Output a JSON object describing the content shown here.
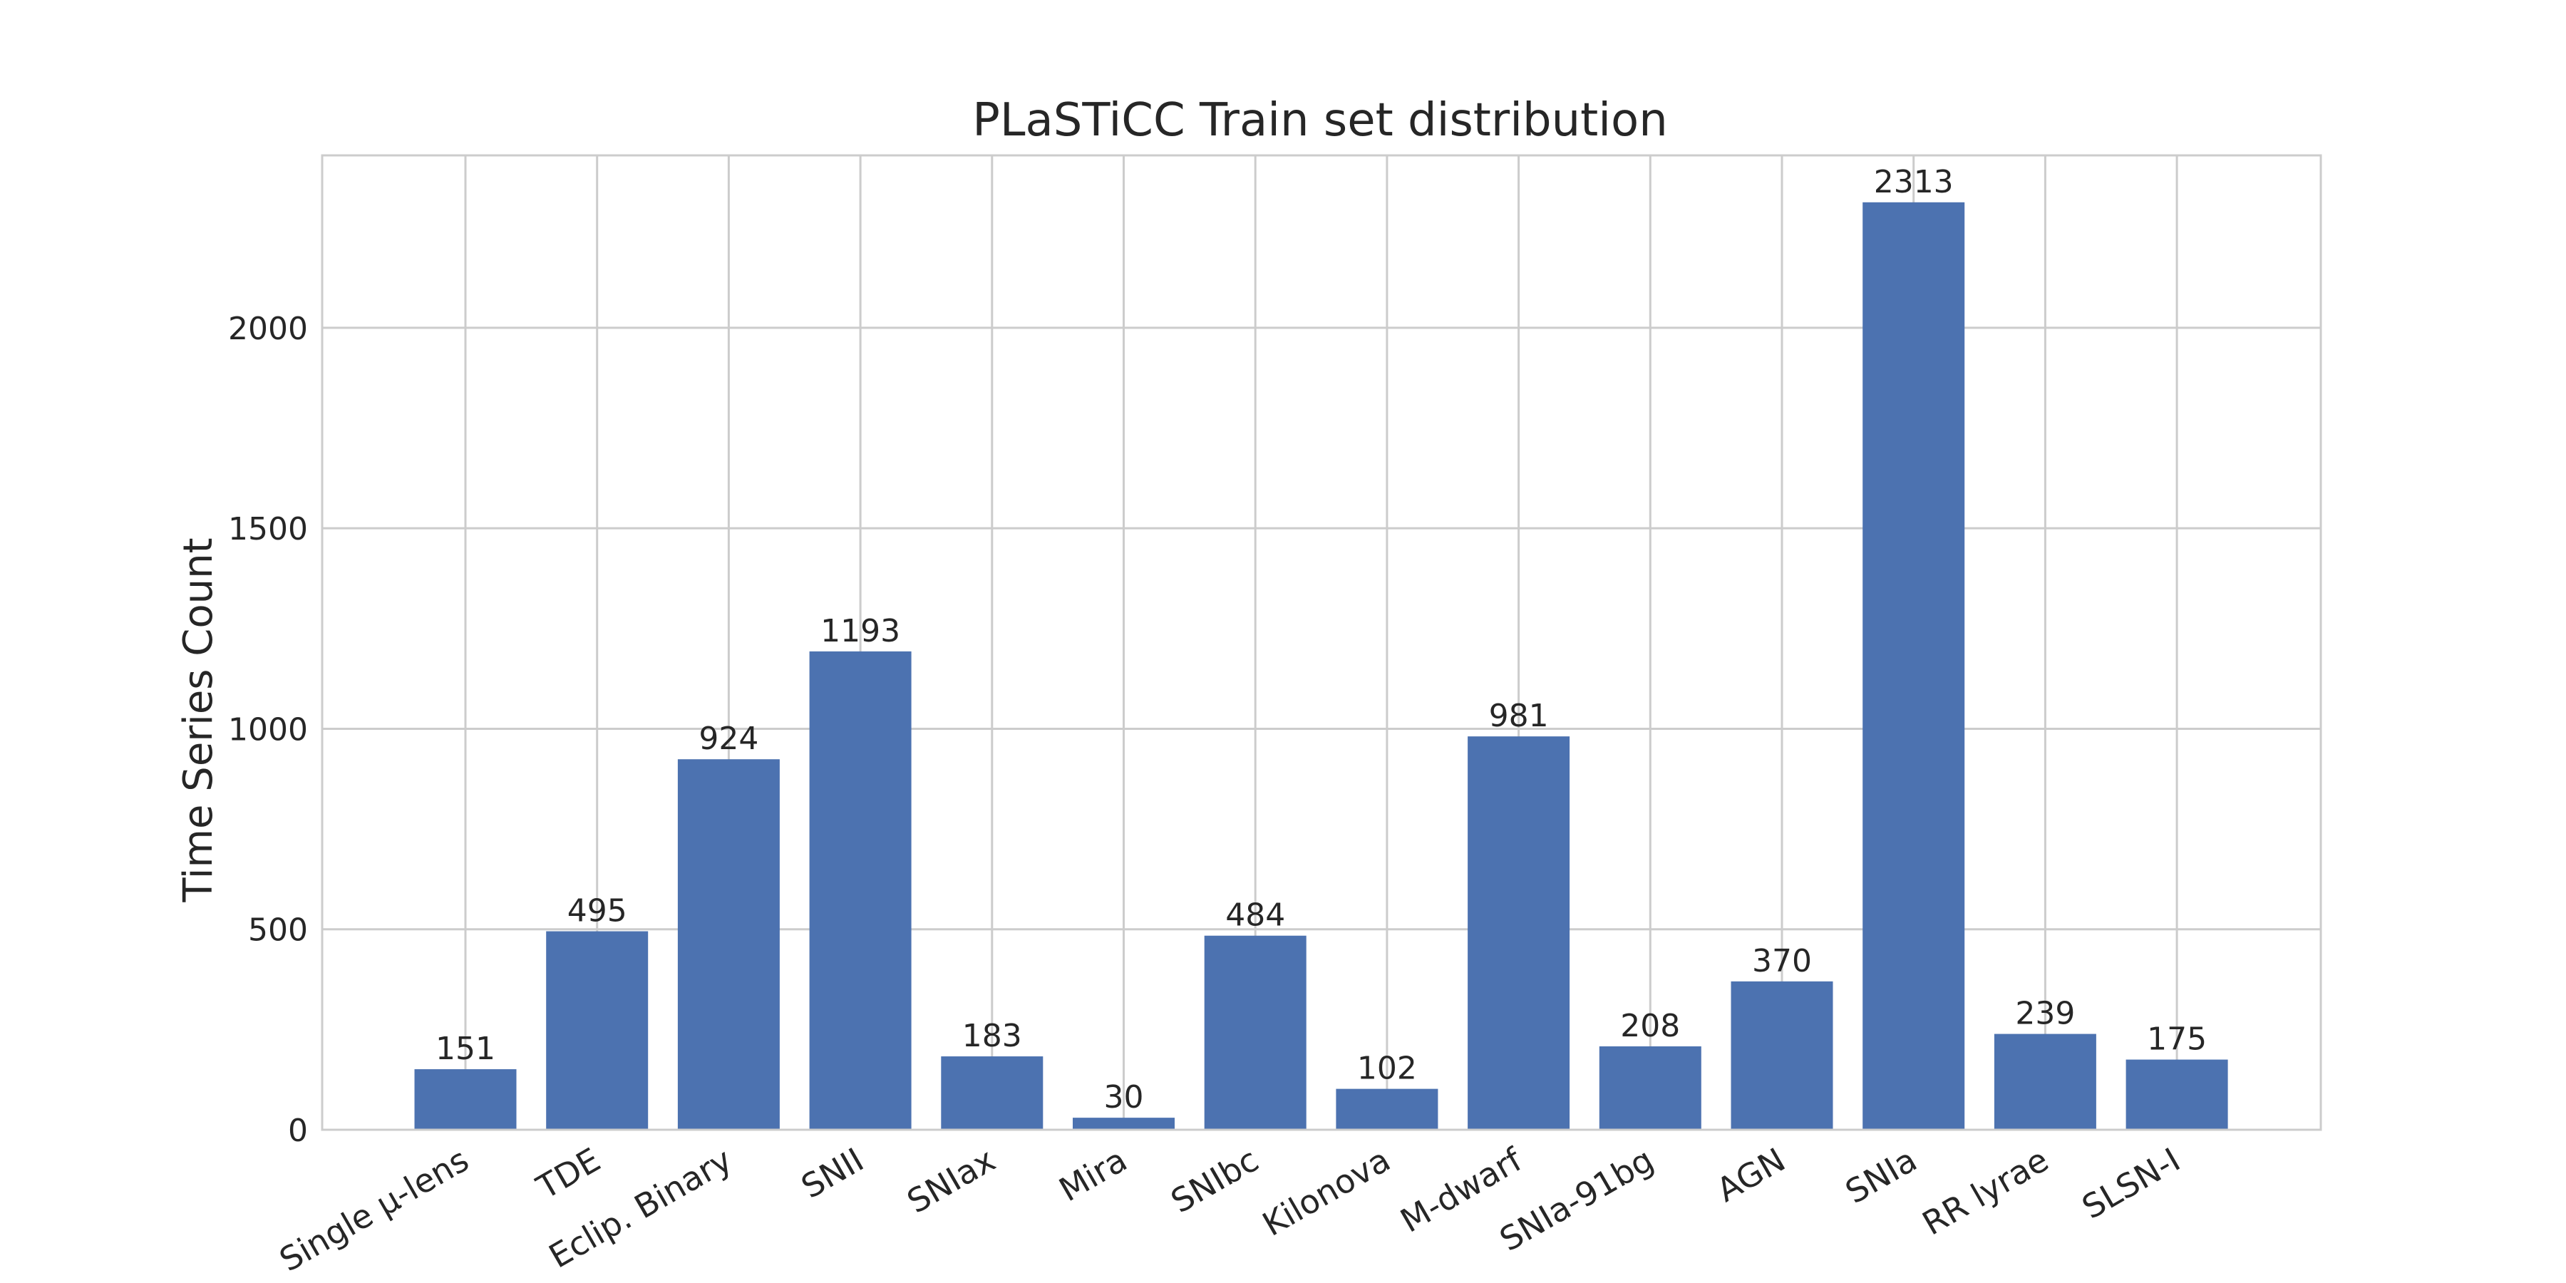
{
  "chart_data": {
    "type": "bar",
    "title": "PLaSTiCC Train set distribution",
    "xlabel": "",
    "ylabel": "Time Series Count",
    "categories": [
      "Single μ-lens",
      "TDE",
      "Eclip. Binary",
      "SNII",
      "SNIax",
      "Mira",
      "SNIbc",
      "Kilonova",
      "M-dwarf",
      "SNIa-91bg",
      "AGN",
      "SNIa",
      "RR lyrae",
      "SLSN-I"
    ],
    "values": [
      151,
      495,
      924,
      1193,
      183,
      30,
      484,
      102,
      981,
      208,
      370,
      2313,
      239,
      175
    ],
    "data_labels": [
      "151",
      "495",
      "924",
      "1193",
      "183",
      "30",
      "484",
      "102",
      "981",
      "208",
      "370",
      "2313",
      "239",
      "175"
    ],
    "ylim": [
      0,
      2430
    ],
    "yticks": [
      0,
      500,
      1000,
      1500,
      2000
    ],
    "ytick_labels": [
      "0",
      "500",
      "1000",
      "1500",
      "2000"
    ],
    "grid": true,
    "legend": "none",
    "colors": {
      "bar": "#4c72b0",
      "grid": "#cccccc",
      "frame": "#cccccc",
      "text": "#262626"
    }
  }
}
